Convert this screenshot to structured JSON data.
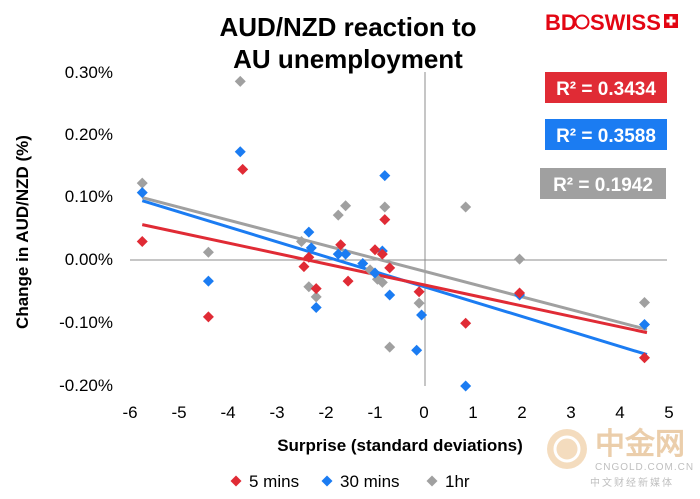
{
  "chart_data": {
    "type": "scatter",
    "title": "AUD/NZD reaction to",
    "subtitle": "AU unemployment",
    "xlabel": "Surprise (standard deviations)",
    "ylabel": "Change in AUD/NZD (%)",
    "xlim": [
      -6,
      5
    ],
    "ylim": [
      -0.2,
      0.3
    ],
    "x_ticks": [
      "-6",
      "-5",
      "-4",
      "-3",
      "-2",
      "-1",
      "0",
      "1",
      "2",
      "3",
      "4",
      "5"
    ],
    "y_ticks": [
      "0.30%",
      "0.20%",
      "0.10%",
      "0.00%",
      "-0.10%",
      "-0.20%"
    ],
    "legend": [
      "5 mins",
      "30 mins",
      "1hr"
    ],
    "series": [
      {
        "name": "5 mins",
        "color": "#e02b35",
        "r2": "R² = 0.3434",
        "trend": [
          [
            -5.75,
            0.057
          ],
          [
            4.55,
            -0.115
          ]
        ],
        "points": [
          [
            -5.75,
            0.03
          ],
          [
            -4.4,
            -0.09
          ],
          [
            -3.7,
            0.145
          ],
          [
            -2.45,
            -0.01
          ],
          [
            -2.35,
            0.005
          ],
          [
            -2.2,
            -0.045
          ],
          [
            -1.7,
            0.025
          ],
          [
            -1.55,
            -0.033
          ],
          [
            -1.0,
            0.017
          ],
          [
            -0.85,
            0.01
          ],
          [
            -0.8,
            0.065
          ],
          [
            -0.7,
            -0.012
          ],
          [
            -0.1,
            -0.05
          ],
          [
            0.85,
            -0.1
          ],
          [
            1.95,
            -0.052
          ],
          [
            4.5,
            -0.155
          ]
        ]
      },
      {
        "name": "30 mins",
        "color": "#1b7cf2",
        "r2": "R² = 0.3588",
        "trend": [
          [
            -5.75,
            0.095
          ],
          [
            4.55,
            -0.15
          ]
        ],
        "points": [
          [
            -5.75,
            0.108
          ],
          [
            -4.4,
            -0.033
          ],
          [
            -3.75,
            0.173
          ],
          [
            -2.35,
            0.045
          ],
          [
            -2.3,
            0.02
          ],
          [
            -2.2,
            -0.075
          ],
          [
            -1.75,
            0.01
          ],
          [
            -1.6,
            0.01
          ],
          [
            -1.25,
            -0.005
          ],
          [
            -1.0,
            -0.02
          ],
          [
            -0.85,
            0.015
          ],
          [
            -0.8,
            0.135
          ],
          [
            -0.7,
            -0.055
          ],
          [
            -0.15,
            -0.143
          ],
          [
            -0.05,
            -0.087
          ],
          [
            0.85,
            -0.2
          ],
          [
            1.95,
            -0.055
          ],
          [
            4.5,
            -0.102
          ]
        ]
      },
      {
        "name": "1hr",
        "color": "#a0a0a0",
        "r2": "R² = 0.1942",
        "trend": [
          [
            -5.75,
            0.1
          ],
          [
            4.55,
            -0.11
          ]
        ],
        "points": [
          [
            -5.75,
            0.123
          ],
          [
            -4.4,
            0.013
          ],
          [
            -3.75,
            0.285
          ],
          [
            -2.5,
            0.03
          ],
          [
            -2.35,
            -0.042
          ],
          [
            -2.2,
            -0.058
          ],
          [
            -1.75,
            0.072
          ],
          [
            -1.6,
            0.087
          ],
          [
            -1.1,
            -0.015
          ],
          [
            -0.95,
            -0.03
          ],
          [
            -0.85,
            -0.035
          ],
          [
            -0.8,
            0.085
          ],
          [
            -0.7,
            -0.138
          ],
          [
            -0.1,
            -0.068
          ],
          [
            0.85,
            0.085
          ],
          [
            1.95,
            0.002
          ],
          [
            4.5,
            -0.067
          ]
        ]
      }
    ]
  },
  "logo": {
    "bd": "BD",
    "swiss": "SWISS"
  },
  "watermark": {
    "cn": "中金网",
    "url": "CNGOLD.COM.CN",
    "sub": "中文财经新媒体"
  }
}
